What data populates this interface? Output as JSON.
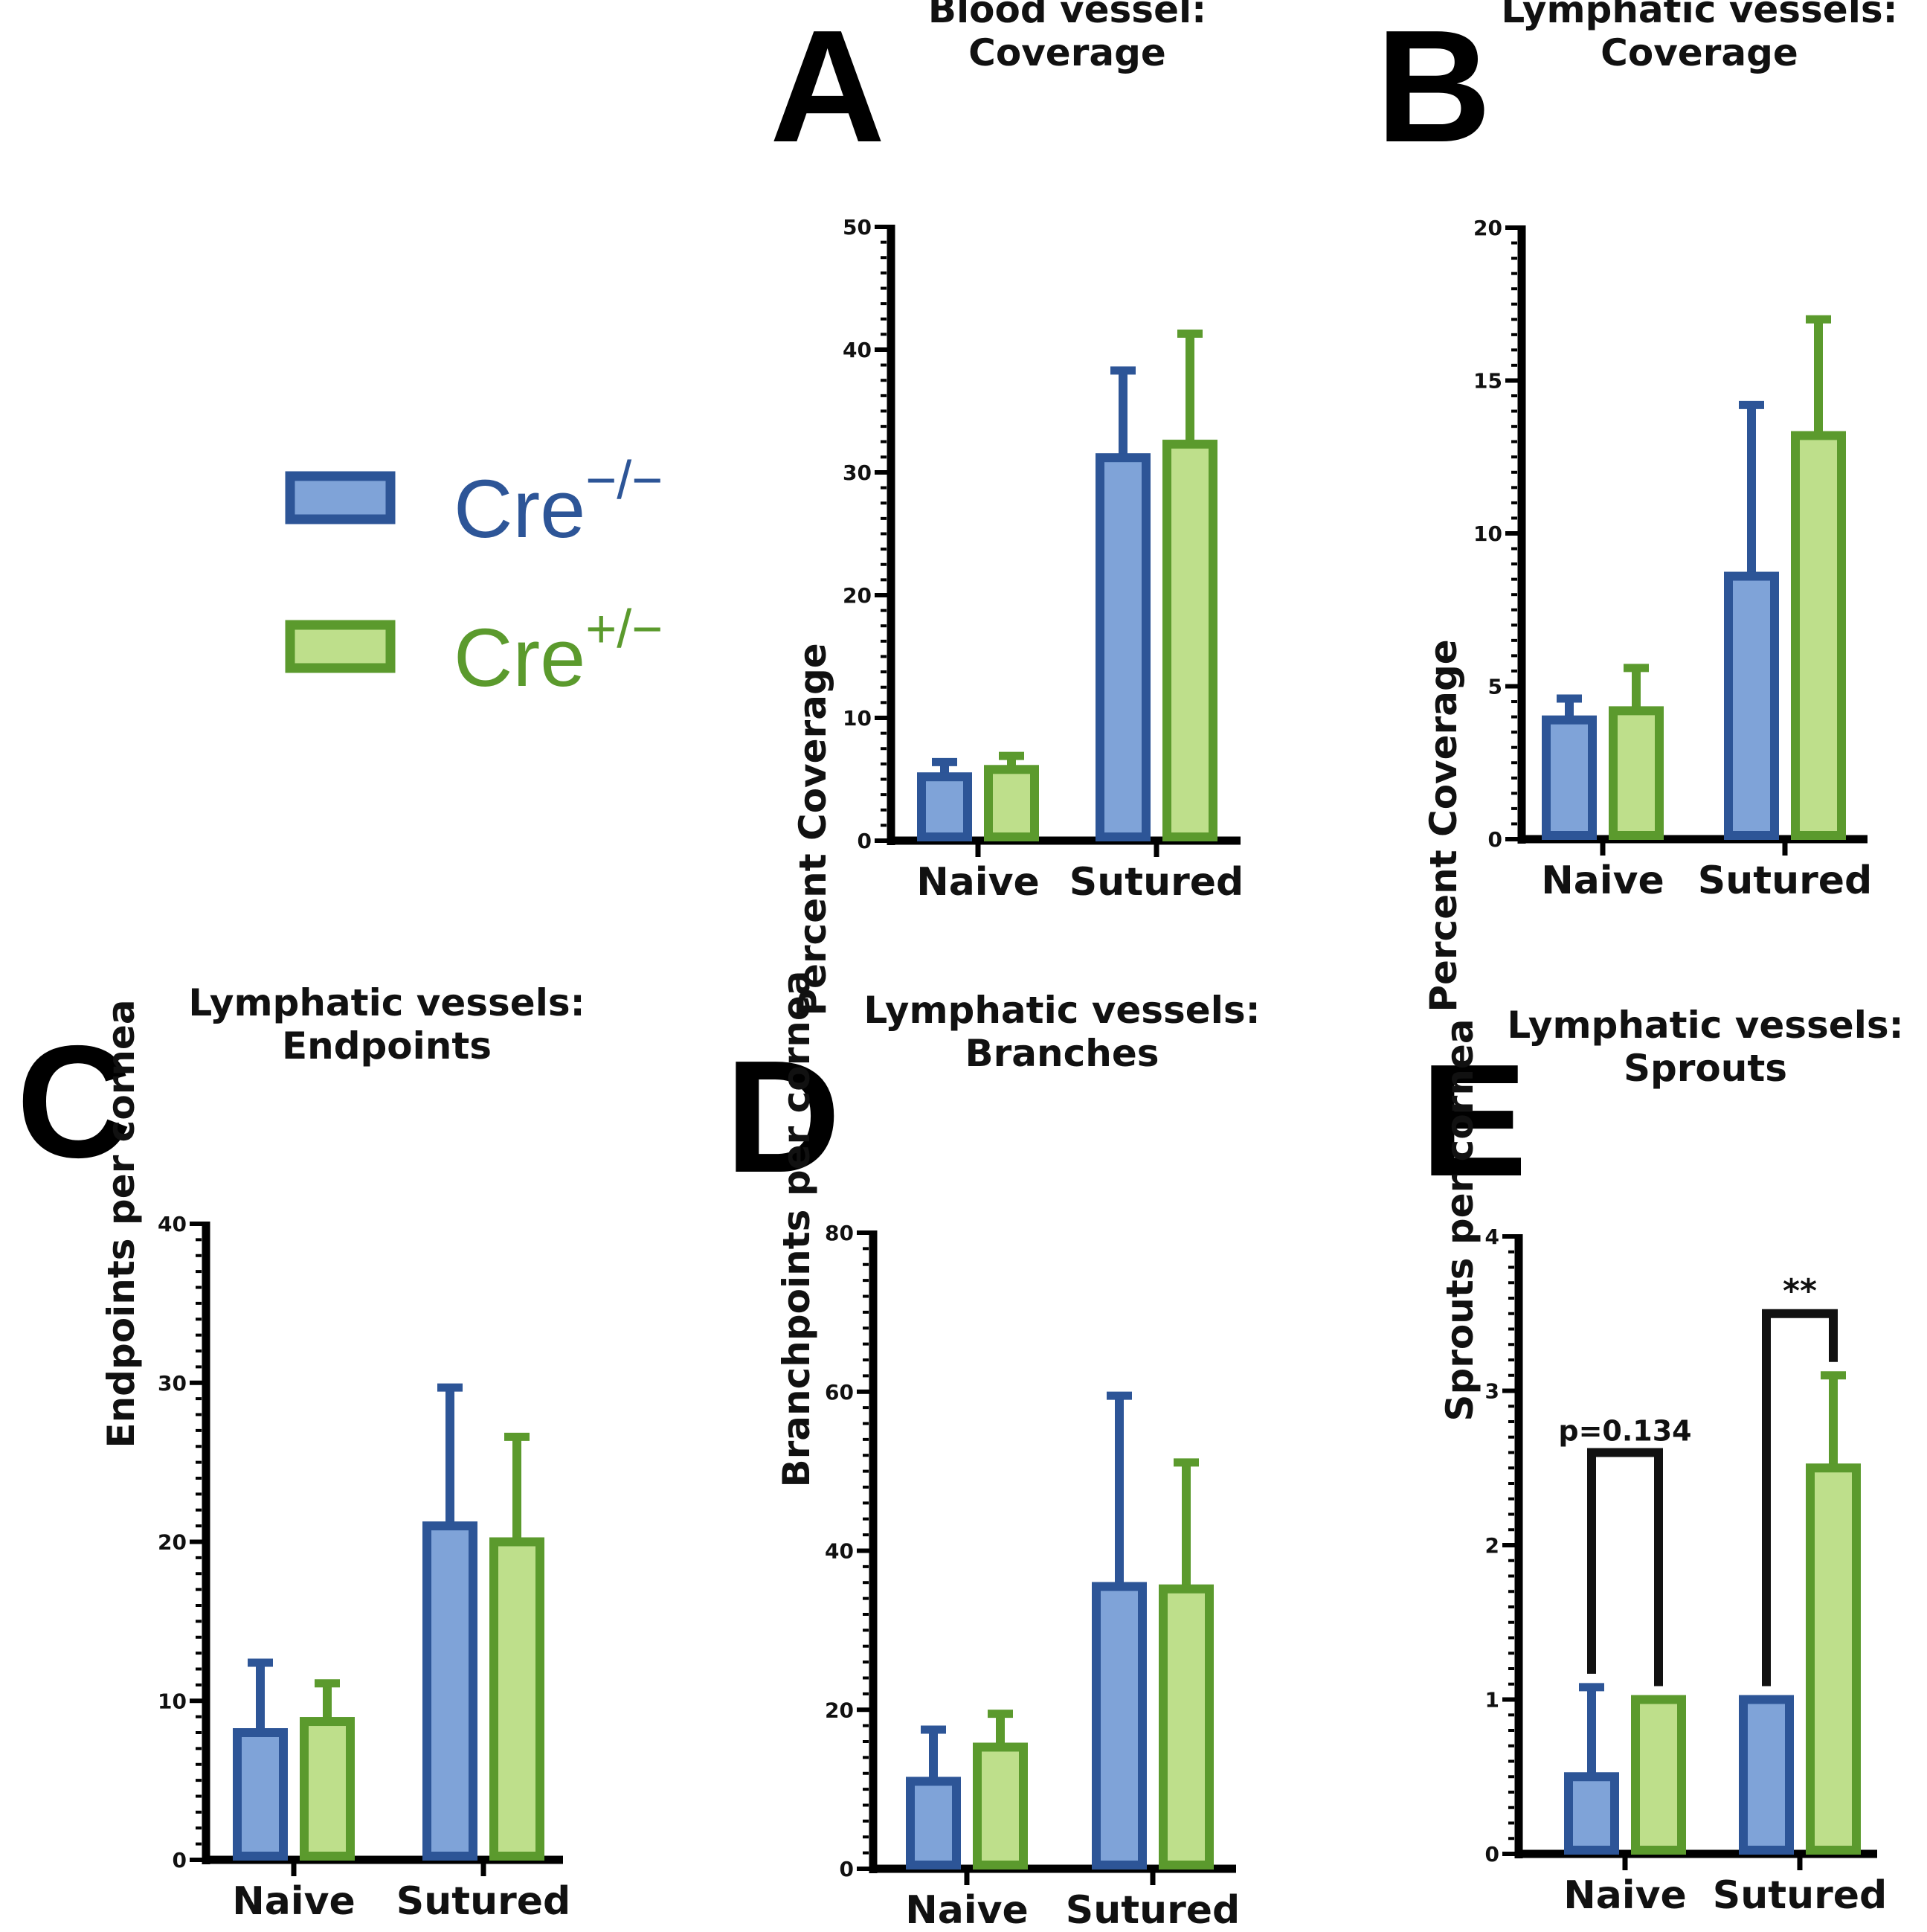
{
  "colors": {
    "group1_fill": "#7fa3d8",
    "group1_stroke": "#2d5597",
    "group2_fill": "#bedf8b",
    "group2_stroke": "#5b9a2d",
    "axis": "#000000"
  },
  "legend": {
    "items": [
      {
        "base": "Cre",
        "sup": "−/−",
        "group": "g1"
      },
      {
        "base": "Cre",
        "sup": "+/−",
        "group": "g2"
      }
    ]
  },
  "chart_data": [
    {
      "id": "A",
      "type": "bar",
      "letter": "A",
      "title": [
        "Blood vessel:",
        "Coverage"
      ],
      "ylabel": "Percent Coverage",
      "xlabel": "",
      "categories": [
        "Naive",
        "Sutured"
      ],
      "ylim": [
        0,
        50
      ],
      "yticks": [
        0,
        10,
        20,
        30,
        40,
        50
      ],
      "series": [
        {
          "name": "Cre−/−",
          "values": [
            5.2,
            31.2
          ],
          "errors": [
            1.2,
            7.1
          ]
        },
        {
          "name": "Cre+/−",
          "values": [
            5.8,
            32.3
          ],
          "errors": [
            1.1,
            9.0
          ]
        }
      ],
      "annotations": []
    },
    {
      "id": "B",
      "type": "bar",
      "letter": "B",
      "title": [
        "Lymphatic vessels:",
        "Coverage"
      ],
      "ylabel": "Percent Coverage",
      "xlabel": "",
      "categories": [
        "Naive",
        "Sutured"
      ],
      "ylim": [
        0,
        20
      ],
      "yticks": [
        0,
        5,
        10,
        15,
        20
      ],
      "series": [
        {
          "name": "Cre−/−",
          "values": [
            3.9,
            8.6
          ],
          "errors": [
            0.7,
            5.6
          ]
        },
        {
          "name": "Cre+/−",
          "values": [
            4.2,
            13.2
          ],
          "errors": [
            1.4,
            3.8
          ]
        }
      ],
      "annotations": []
    },
    {
      "id": "C",
      "type": "bar",
      "letter": "C",
      "title": [
        "Lymphatic vessels:",
        "Endpoints"
      ],
      "ylabel": "Endpoints per cornea",
      "xlabel": "",
      "categories": [
        "Naive",
        "Sutured"
      ],
      "ylim": [
        0,
        40
      ],
      "yticks": [
        0,
        10,
        20,
        30,
        40
      ],
      "series": [
        {
          "name": "Cre−/−",
          "values": [
            8.0,
            21.0
          ],
          "errors": [
            4.4,
            8.7
          ]
        },
        {
          "name": "Cre+/−",
          "values": [
            8.7,
            20.0
          ],
          "errors": [
            2.4,
            6.6
          ]
        }
      ],
      "annotations": []
    },
    {
      "id": "D",
      "type": "bar",
      "letter": "D",
      "title": [
        "Lymphatic vessels:",
        "Branches"
      ],
      "ylabel": "Branchpoints per cornea",
      "xlabel": "",
      "categories": [
        "Naive",
        "Sutured"
      ],
      "ylim": [
        0,
        80
      ],
      "yticks": [
        0,
        20,
        40,
        60,
        80
      ],
      "series": [
        {
          "name": "Cre−/−",
          "values": [
            11.0,
            35.5
          ],
          "errors": [
            6.5,
            24.0
          ]
        },
        {
          "name": "Cre+/−",
          "values": [
            15.3,
            35.2
          ],
          "errors": [
            4.2,
            15.9
          ]
        }
      ],
      "annotations": []
    },
    {
      "id": "E",
      "type": "bar",
      "letter": "E",
      "title": [
        "Lymphatic vessels:",
        "Sprouts"
      ],
      "ylabel": "Sprouts per cornea",
      "xlabel": "",
      "categories": [
        "Naive",
        "Sutured"
      ],
      "ylim": [
        0,
        4
      ],
      "yticks": [
        0,
        1,
        2,
        3,
        4
      ],
      "series": [
        {
          "name": "Cre−/−",
          "values": [
            0.5,
            1.0
          ],
          "errors": [
            0.58,
            0.0
          ]
        },
        {
          "name": "Cre+/−",
          "values": [
            1.0,
            2.5
          ],
          "errors": [
            0.0,
            0.6
          ]
        }
      ],
      "annotations": [
        {
          "category": 0,
          "text": "p=0.134",
          "level": 2.6
        },
        {
          "category": 1,
          "text": "**",
          "level": 3.5
        }
      ]
    }
  ]
}
